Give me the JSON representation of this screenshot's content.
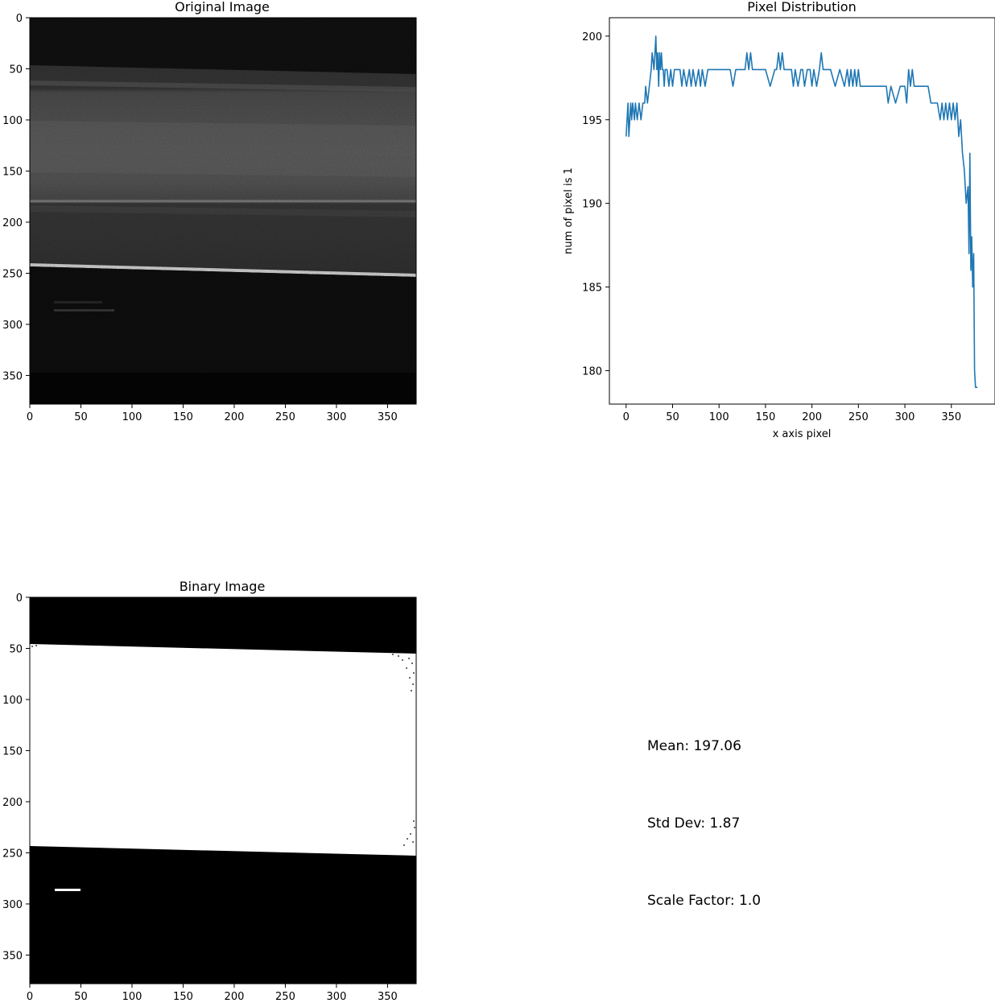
{
  "chart_data": [
    {
      "type": "image",
      "title": "Original Image",
      "xlim": [
        0,
        378
      ],
      "ylim": [
        378,
        0
      ],
      "xticks": [
        0,
        50,
        100,
        150,
        200,
        250,
        300,
        350
      ],
      "yticks": [
        0,
        50,
        100,
        150,
        200,
        250,
        300,
        350
      ],
      "bands": [
        {
          "y_left": 0,
          "y_right": 0,
          "gray": 14
        },
        {
          "y_left": 47,
          "y_right": 56,
          "gray": 78
        },
        {
          "y_left": 80,
          "y_right": 88,
          "gray": 92
        },
        {
          "y_left": 200,
          "y_right": 205,
          "gray": 80
        },
        {
          "y_left": 240,
          "y_right": 249,
          "gray": 215
        },
        {
          "y_left": 244,
          "y_right": 253,
          "gray": 12
        },
        {
          "y_left": 366,
          "y_right": 366,
          "gray": 4
        }
      ]
    },
    {
      "type": "line",
      "title": "Pixel Distribution",
      "xlabel": "x axis pixel",
      "ylabel": "num of pixel is 1",
      "xlim": [
        -18,
        397
      ],
      "ylim": [
        178,
        201.1
      ],
      "xticks": [
        0,
        50,
        100,
        150,
        200,
        250,
        300,
        350
      ],
      "yticks": [
        180,
        185,
        190,
        195,
        200
      ],
      "color": "#1f77b4",
      "x": [
        0,
        2,
        3,
        5,
        6,
        7,
        9,
        10,
        12,
        14,
        16,
        18,
        20,
        21,
        23,
        25,
        27,
        28,
        30,
        31,
        32,
        33,
        34,
        35,
        36,
        37,
        38,
        39,
        40,
        41,
        42,
        44,
        46,
        48,
        50,
        52,
        55,
        58,
        60,
        62,
        65,
        68,
        70,
        72,
        75,
        78,
        80,
        82,
        85,
        88,
        90,
        92,
        95,
        98,
        100,
        105,
        110,
        112,
        115,
        118,
        120,
        125,
        128,
        130,
        132,
        134,
        136,
        138,
        140,
        145,
        150,
        155,
        160,
        162,
        164,
        166,
        168,
        170,
        172,
        175,
        178,
        180,
        182,
        185,
        188,
        190,
        192,
        195,
        198,
        200,
        202,
        205,
        208,
        210,
        212,
        215,
        218,
        220,
        225,
        230,
        235,
        238,
        240,
        242,
        244,
        246,
        248,
        250,
        252,
        255,
        260,
        265,
        270,
        272,
        275,
        278,
        280,
        282,
        285,
        290,
        295,
        300,
        302,
        304,
        306,
        308,
        310,
        315,
        320,
        325,
        328,
        330,
        332,
        335,
        338,
        340,
        342,
        344,
        346,
        348,
        350,
        352,
        354,
        356,
        358,
        360,
        362,
        364,
        366,
        368,
        369,
        370,
        371,
        372,
        373,
        374,
        375,
        376,
        377,
        378
      ],
      "y": [
        194,
        196,
        194,
        196,
        195,
        196,
        195,
        196,
        195,
        196,
        195,
        196,
        196,
        197,
        196,
        197,
        198,
        199,
        198,
        199,
        200,
        198,
        199,
        197,
        199,
        198,
        199,
        198,
        198,
        197,
        198,
        198,
        197,
        198,
        197,
        198,
        198,
        198,
        197,
        198,
        197,
        198,
        197,
        198,
        197,
        198,
        197,
        198,
        197,
        198,
        198,
        198,
        198,
        198,
        198,
        198,
        198,
        198,
        197,
        198,
        198,
        198,
        198,
        199,
        198,
        199,
        198,
        198,
        198,
        198,
        198,
        197,
        198,
        198,
        199,
        198,
        199,
        198,
        198,
        198,
        198,
        197,
        198,
        197,
        198,
        198,
        197,
        198,
        198,
        197,
        198,
        197,
        198,
        199,
        198,
        198,
        198,
        198,
        197,
        198,
        197,
        198,
        197,
        198,
        197,
        198,
        197,
        198,
        197,
        197,
        197,
        197,
        197,
        197,
        197,
        197,
        197,
        196,
        197,
        196,
        197,
        197,
        196,
        198,
        197,
        198,
        197,
        197,
        197,
        197,
        196,
        196,
        196,
        196,
        195,
        196,
        195,
        196,
        195,
        196,
        195,
        196,
        195,
        196,
        194,
        195,
        193,
        192,
        190,
        191,
        187,
        193,
        186,
        188,
        185,
        187,
        180,
        179,
        179,
        179
      ],
      "labelled_ticks_only": true
    },
    {
      "type": "image",
      "title": "Binary Image",
      "xlim": [
        0,
        378
      ],
      "ylim": [
        378,
        0
      ],
      "xticks": [
        0,
        50,
        100,
        150,
        200,
        250,
        300,
        350
      ],
      "yticks": [
        0,
        50,
        100,
        150,
        200,
        250,
        300,
        350
      ],
      "white_region": {
        "top_left": 46,
        "top_right": 56,
        "bottom_left": 244,
        "bottom_right": 252
      },
      "small_white_mark": {
        "x0": 25,
        "x1": 50,
        "y": 287
      }
    }
  ],
  "stats": {
    "mean": "Mean: 197.06",
    "std": "Std Dev: 1.87",
    "scale": "Scale Factor: 1.0"
  }
}
